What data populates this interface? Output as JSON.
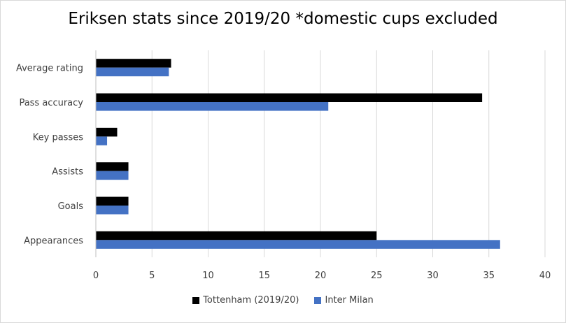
{
  "chart_data": {
    "type": "bar",
    "orientation": "horizontal",
    "title": "Eriksen stats since 2019/20 *domestic cups excluded",
    "categories": [
      "Average rating",
      "Pass accuracy",
      "Key passes",
      "Assists",
      "Goals",
      "Appearances"
    ],
    "series": [
      {
        "name": "Tottenham (2019/20)",
        "color": "#000000",
        "values": [
          6.7,
          34.4,
          1.9,
          2.9,
          2.9,
          25
        ]
      },
      {
        "name": "Inter Milan",
        "color": "#4472c4",
        "values": [
          6.5,
          20.7,
          1.0,
          2.9,
          2.9,
          36
        ]
      }
    ],
    "xlim": [
      0,
      40
    ],
    "xticks": [
      "0",
      "5",
      "10",
      "15",
      "20",
      "25",
      "30",
      "35",
      "40"
    ],
    "grid": true,
    "legend": "bottom"
  }
}
